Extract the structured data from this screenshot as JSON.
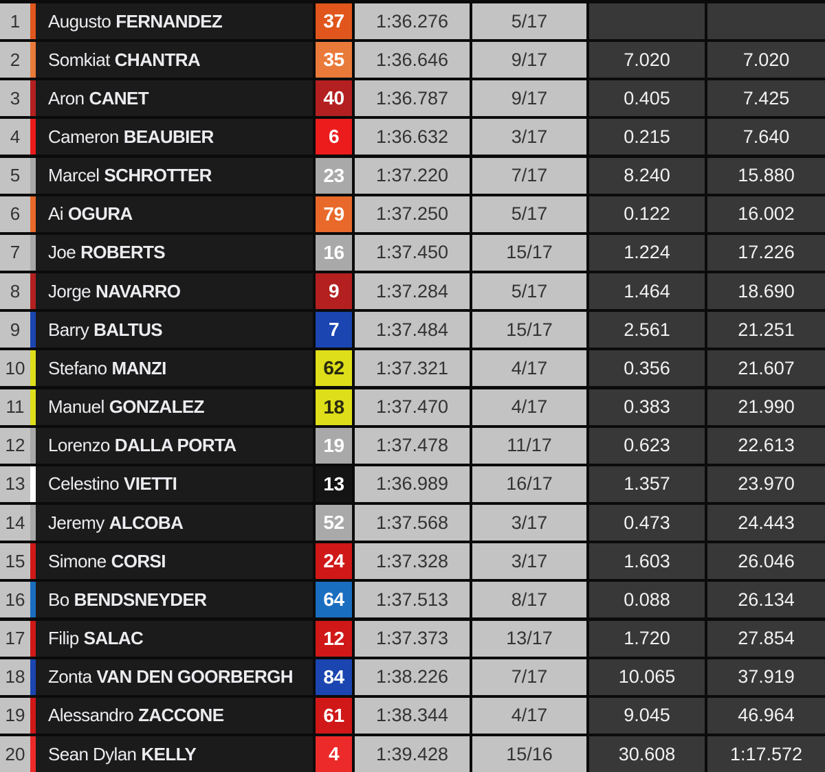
{
  "colors": {
    "ktm_orange": "#e0561c",
    "ktm_light_orange": "#ea7a3a",
    "red": "#c8201e",
    "bright_red": "#ec1c1c",
    "gray": "#a9a9a9",
    "blue": "#1b45b0",
    "light_blue": "#1a6ec0",
    "yellow": "#dede1a",
    "black": "#141414",
    "white": "#ffffff"
  },
  "rows": [
    {
      "pos": "1",
      "first": "Augusto",
      "last": "FERNANDEZ",
      "number": "37",
      "team_color": "#e0561c",
      "number_text_color": "#ffffff",
      "best_lap": "1:36.276",
      "lap": "5/17",
      "gap": "",
      "total": ""
    },
    {
      "pos": "2",
      "first": "Somkiat",
      "last": "CHANTRA",
      "number": "35",
      "team_color": "#ea7a3a",
      "number_text_color": "#ffffff",
      "best_lap": "1:36.646",
      "lap": "9/17",
      "gap": "7.020",
      "total": "7.020"
    },
    {
      "pos": "3",
      "first": "Aron",
      "last": "CANET",
      "number": "40",
      "team_color": "#b42020",
      "number_text_color": "#ffffff",
      "best_lap": "1:36.787",
      "lap": "9/17",
      "gap": "0.405",
      "total": "7.425"
    },
    {
      "pos": "4",
      "first": "Cameron",
      "last": "BEAUBIER",
      "number": "6",
      "team_color": "#ec1c1c",
      "number_text_color": "#ffffff",
      "best_lap": "1:36.632",
      "lap": "3/17",
      "gap": "0.215",
      "total": "7.640"
    },
    {
      "pos": "5",
      "first": "Marcel",
      "last": "SCHROTTER",
      "number": "23",
      "team_color": "#a9a9a9",
      "number_text_color": "#ffffff",
      "best_lap": "1:37.220",
      "lap": "7/17",
      "gap": "8.240",
      "total": "15.880"
    },
    {
      "pos": "6",
      "first": "Ai",
      "last": "OGURA",
      "number": "79",
      "team_color": "#e8692a",
      "number_text_color": "#ffffff",
      "best_lap": "1:37.250",
      "lap": "5/17",
      "gap": "0.122",
      "total": "16.002"
    },
    {
      "pos": "7",
      "first": "Joe",
      "last": "ROBERTS",
      "number": "16",
      "team_color": "#a9a9a9",
      "number_text_color": "#ffffff",
      "best_lap": "1:37.450",
      "lap": "15/17",
      "gap": "1.224",
      "total": "17.226"
    },
    {
      "pos": "8",
      "first": "Jorge",
      "last": "NAVARRO",
      "number": "9",
      "team_color": "#b42020",
      "number_text_color": "#ffffff",
      "best_lap": "1:37.284",
      "lap": "5/17",
      "gap": "1.464",
      "total": "18.690"
    },
    {
      "pos": "9",
      "first": "Barry",
      "last": "BALTUS",
      "number": "7",
      "team_color": "#1b45b0",
      "number_text_color": "#ffffff",
      "best_lap": "1:37.484",
      "lap": "15/17",
      "gap": "2.561",
      "total": "21.251"
    },
    {
      "pos": "10",
      "first": "Stefano",
      "last": "MANZI",
      "number": "62",
      "team_color": "#dede1a",
      "number_text_color": "#2a2a10",
      "best_lap": "1:37.321",
      "lap": "4/17",
      "gap": "0.356",
      "total": "21.607"
    },
    {
      "pos": "11",
      "first": "Manuel",
      "last": "GONZALEZ",
      "number": "18",
      "team_color": "#dede1a",
      "number_text_color": "#2a2a10",
      "best_lap": "1:37.470",
      "lap": "4/17",
      "gap": "0.383",
      "total": "21.990"
    },
    {
      "pos": "12",
      "first": "Lorenzo",
      "last": "DALLA PORTA",
      "number": "19",
      "team_color": "#a9a9a9",
      "number_text_color": "#ffffff",
      "best_lap": "1:37.478",
      "lap": "11/17",
      "gap": "0.623",
      "total": "22.613"
    },
    {
      "pos": "13",
      "first": "Celestino",
      "last": "VIETTI",
      "number": "13",
      "team_color": "#141414",
      "stripe_color": "#ffffff",
      "number_text_color": "#ffffff",
      "best_lap": "1:36.989",
      "lap": "16/17",
      "gap": "1.357",
      "total": "23.970"
    },
    {
      "pos": "14",
      "first": "Jeremy",
      "last": "ALCOBA",
      "number": "52",
      "team_color": "#a9a9a9",
      "number_text_color": "#ffffff",
      "best_lap": "1:37.568",
      "lap": "3/17",
      "gap": "0.473",
      "total": "24.443"
    },
    {
      "pos": "15",
      "first": "Simone",
      "last": "CORSI",
      "number": "24",
      "team_color": "#d01818",
      "number_text_color": "#ffffff",
      "best_lap": "1:37.328",
      "lap": "3/17",
      "gap": "1.603",
      "total": "26.046"
    },
    {
      "pos": "16",
      "first": "Bo",
      "last": "BENDSNEYDER",
      "number": "64",
      "team_color": "#1a6ec0",
      "number_text_color": "#ffffff",
      "best_lap": "1:37.513",
      "lap": "8/17",
      "gap": "0.088",
      "total": "26.134"
    },
    {
      "pos": "17",
      "first": "Filip",
      "last": "SALAC",
      "number": "12",
      "team_color": "#d01818",
      "number_text_color": "#ffffff",
      "best_lap": "1:37.373",
      "lap": "13/17",
      "gap": "1.720",
      "total": "27.854"
    },
    {
      "pos": "18",
      "first": "Zonta",
      "last": "VAN DEN GOORBERGH",
      "number": "84",
      "team_color": "#1b45b0",
      "number_text_color": "#ffffff",
      "best_lap": "1:38.226",
      "lap": "7/17",
      "gap": "10.065",
      "total": "37.919"
    },
    {
      "pos": "19",
      "first": "Alessandro",
      "last": "ZACCONE",
      "number": "61",
      "team_color": "#d01818",
      "number_text_color": "#ffffff",
      "best_lap": "1:38.344",
      "lap": "4/17",
      "gap": "9.045",
      "total": "46.964"
    },
    {
      "pos": "20",
      "first": "Sean Dylan",
      "last": "KELLY",
      "number": "4",
      "team_color": "#ec2a2a",
      "number_text_color": "#ffffff",
      "best_lap": "1:39.428",
      "lap": "15/16",
      "gap": "30.608",
      "total": "1:17.572"
    }
  ]
}
